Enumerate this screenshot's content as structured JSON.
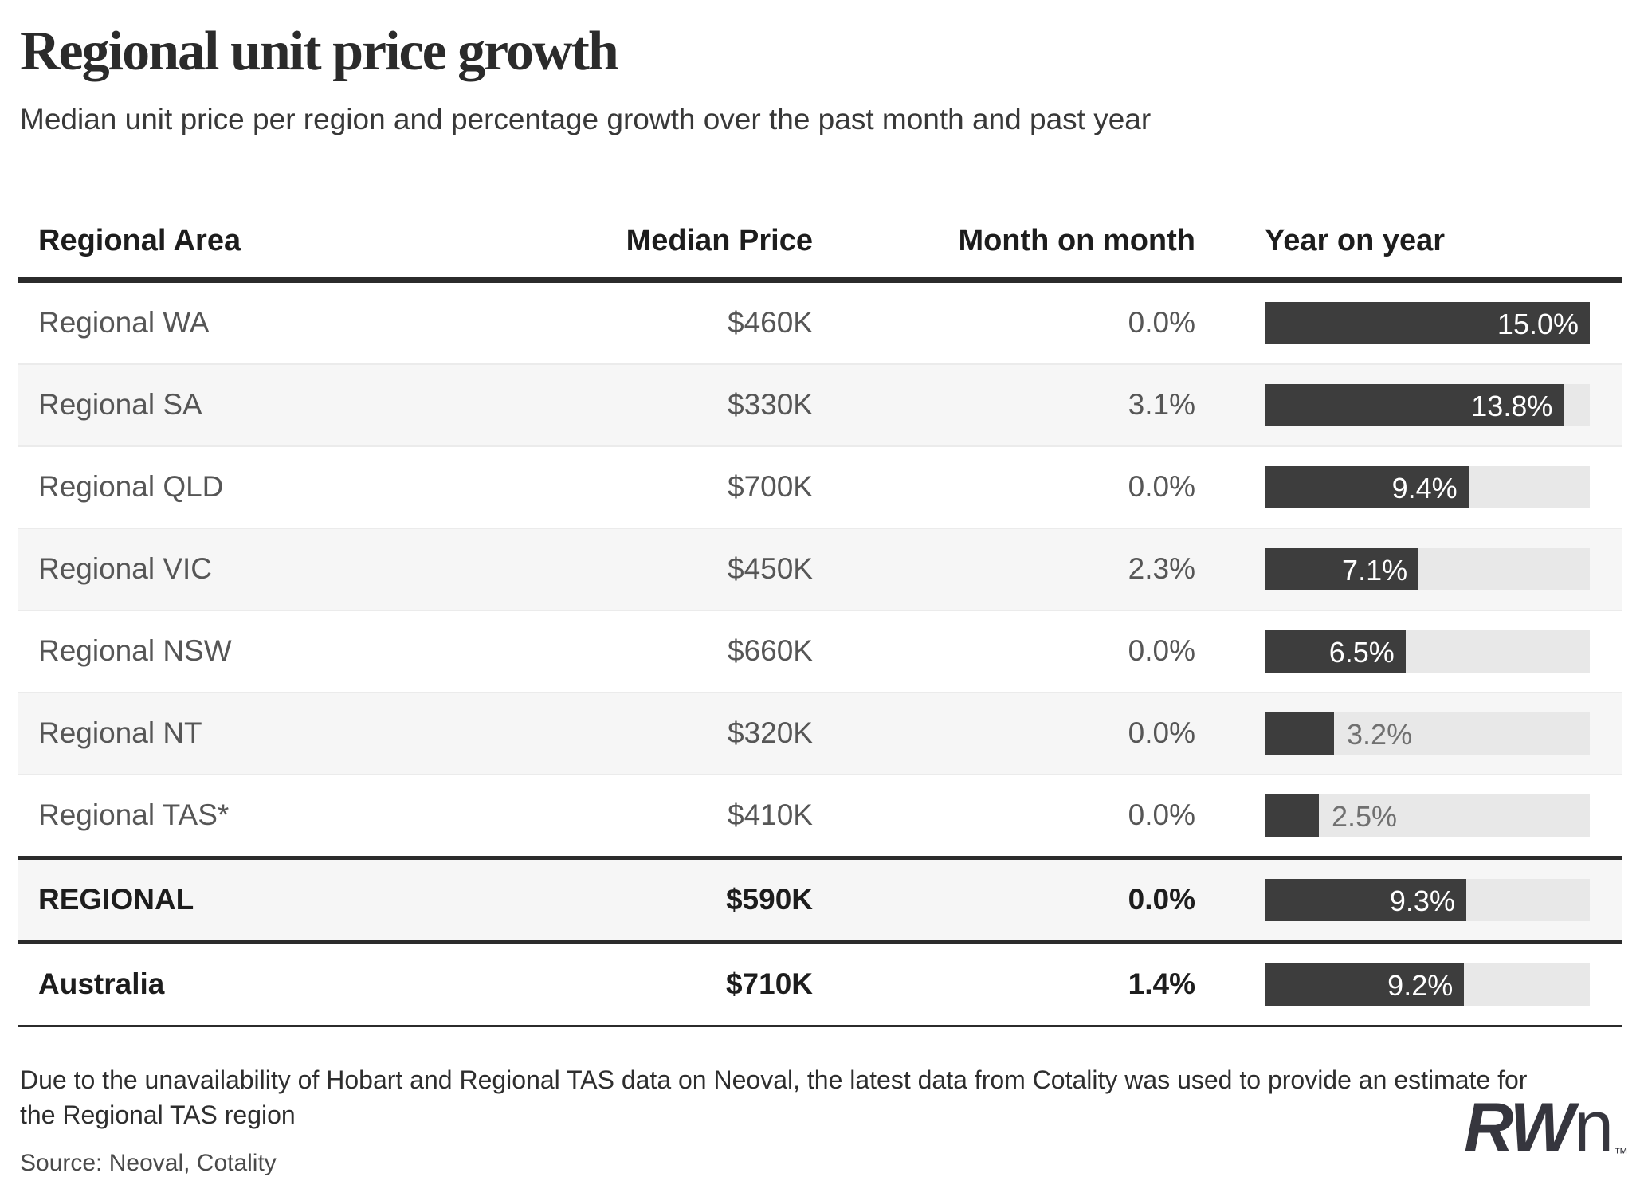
{
  "header": {
    "title": "Regional unit price growth",
    "subtitle": "Median unit price per region and percentage growth over the past month and past year"
  },
  "chart_data": {
    "type": "table",
    "title": "Regional unit price growth",
    "subtitle": "Median unit price per region and percentage growth over the past month and past year",
    "columns": [
      "Regional Area",
      "Median Price",
      "Month on month",
      "Year on year"
    ],
    "bar_axis": {
      "min": 0,
      "max": 15.0,
      "unit": "%"
    },
    "bar_color": "#3d3d3d",
    "bar_track_color": "#e8e8e8",
    "rows": [
      {
        "area": "Regional WA",
        "median_price": "$460K",
        "month_on_month": "0.0%",
        "year_on_year": 15.0,
        "year_on_year_label": "15.0%",
        "bold": false,
        "divider_above": false
      },
      {
        "area": "Regional SA",
        "median_price": "$330K",
        "month_on_month": "3.1%",
        "year_on_year": 13.8,
        "year_on_year_label": "13.8%",
        "bold": false,
        "divider_above": false
      },
      {
        "area": "Regional QLD",
        "median_price": "$700K",
        "month_on_month": "0.0%",
        "year_on_year": 9.4,
        "year_on_year_label": "9.4%",
        "bold": false,
        "divider_above": false
      },
      {
        "area": "Regional VIC",
        "median_price": "$450K",
        "month_on_month": "2.3%",
        "year_on_year": 7.1,
        "year_on_year_label": "7.1%",
        "bold": false,
        "divider_above": false
      },
      {
        "area": "Regional NSW",
        "median_price": "$660K",
        "month_on_month": "0.0%",
        "year_on_year": 6.5,
        "year_on_year_label": "6.5%",
        "bold": false,
        "divider_above": false
      },
      {
        "area": "Regional NT",
        "median_price": "$320K",
        "month_on_month": "0.0%",
        "year_on_year": 3.2,
        "year_on_year_label": "3.2%",
        "bold": false,
        "divider_above": false
      },
      {
        "area": "Regional TAS*",
        "median_price": "$410K",
        "month_on_month": "0.0%",
        "year_on_year": 2.5,
        "year_on_year_label": "2.5%",
        "bold": false,
        "divider_above": false
      },
      {
        "area": "REGIONAL",
        "median_price": "$590K",
        "month_on_month": "0.0%",
        "year_on_year": 9.3,
        "year_on_year_label": "9.3%",
        "bold": true,
        "divider_above": true
      },
      {
        "area": "Australia",
        "median_price": "$710K",
        "month_on_month": "1.4%",
        "year_on_year": 9.2,
        "year_on_year_label": "9.2%",
        "bold": true,
        "divider_above": true
      }
    ]
  },
  "footer": {
    "note": "Due to the unavailability of Hobart and Regional TAS data on Neoval, the latest data from Cotality was used to provide an estimate for the Regional TAS region",
    "source": "Source: Neoval, Cotality",
    "logo": {
      "bold_part": "RW",
      "light_part": "n",
      "tm": "™"
    }
  }
}
